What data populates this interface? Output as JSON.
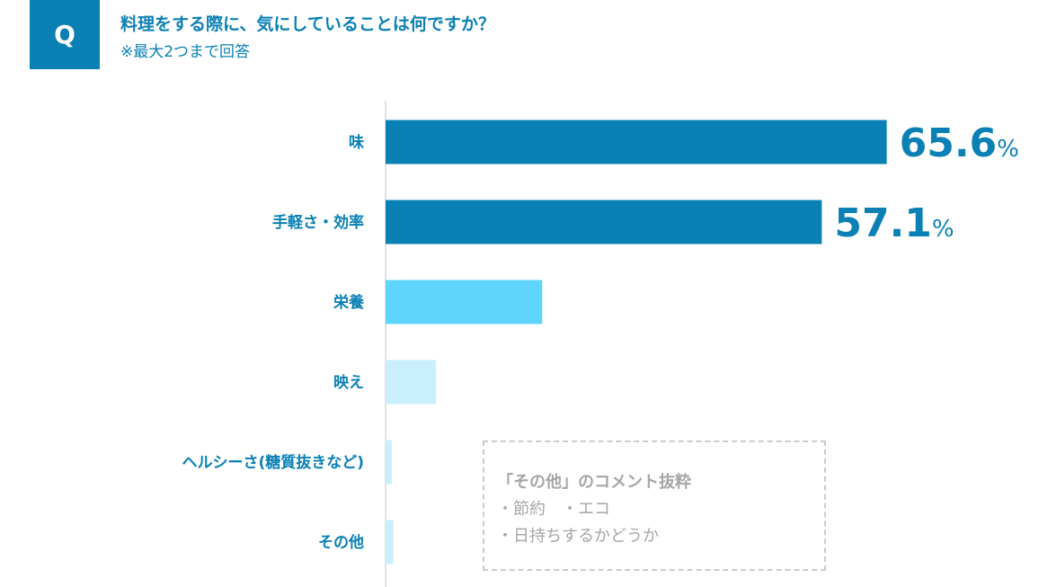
{
  "header": {
    "badge": "Q",
    "question": "料理をする際に、気にしていることは何ですか？",
    "note": "※最大2つまで回答"
  },
  "chart_data": {
    "type": "bar",
    "orientation": "horizontal",
    "categories": [
      "味",
      "手軽さ・効率",
      "栄養",
      "映え",
      "ヘルシーさ(糖質抜きなど)",
      "その他"
    ],
    "values": [
      65.6,
      57.1,
      20.5,
      6.6,
      0.8,
      1.0
    ],
    "value_labels": [
      "65.6",
      "57.1",
      "",
      "",
      "",
      ""
    ],
    "unit": "%",
    "xlim": [
      0,
      100
    ],
    "bar_colors": [
      "#0b80b4",
      "#0b80b4",
      "#5fd4fc",
      "#c9eefc",
      "#c9eefc",
      "#c9eefc"
    ],
    "grid": false
  },
  "comment": {
    "title": "「その他」のコメント抜粋",
    "lines": [
      "・節約　・エコ",
      "・日持ちするかどうか"
    ]
  }
}
